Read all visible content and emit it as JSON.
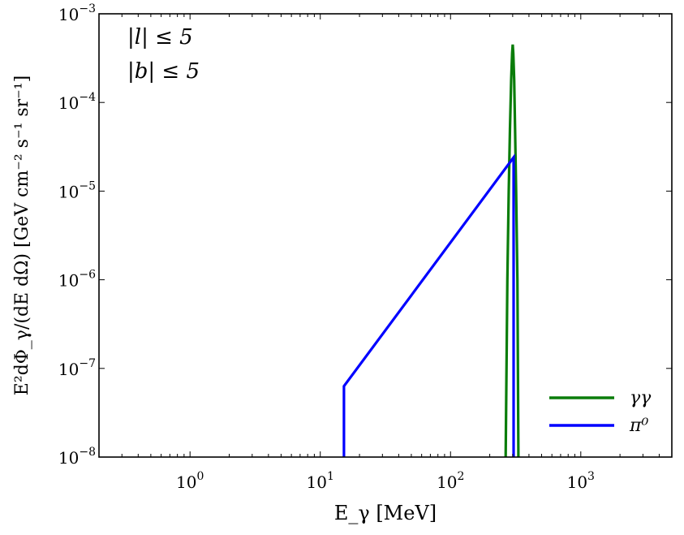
{
  "chart_data": {
    "type": "line",
    "xscale": "log",
    "yscale": "log",
    "xlim": [
      0.2,
      5000
    ],
    "ylim": [
      1e-08,
      0.001
    ],
    "xlabel": "E_γ [MeV]",
    "ylabel": "E²dΦ_γ/(dE dΩ) [GeV cm⁻² s⁻¹ sr⁻¹]",
    "x_ticks": [
      {
        "value": 1,
        "label": "10^0"
      },
      {
        "value": 10,
        "label": "10^1"
      },
      {
        "value": 100,
        "label": "10^2"
      },
      {
        "value": 1000,
        "label": "10^3"
      }
    ],
    "y_ticks": [
      {
        "value": 1e-08,
        "label": "10^−8"
      },
      {
        "value": 1e-07,
        "label": "10^−7"
      },
      {
        "value": 1e-06,
        "label": "10^−6"
      },
      {
        "value": 1e-05,
        "label": "10^−5"
      },
      {
        "value": 0.0001,
        "label": "10^−4"
      },
      {
        "value": 0.001,
        "label": "10^−3"
      }
    ],
    "annotations": [
      "|l| ≤ 5",
      "|b| ≤ 5"
    ],
    "legend_position": "lower-right",
    "grid": false,
    "series": [
      {
        "name": "γγ",
        "color": "#0a7d0a",
        "points": [
          [
            265,
            1e-08
          ],
          [
            273,
            1e-06
          ],
          [
            280,
            1e-05
          ],
          [
            286,
            5e-05
          ],
          [
            292,
            0.00018
          ],
          [
            297,
            0.00036
          ],
          [
            300,
            0.00045
          ],
          [
            303,
            0.00036
          ],
          [
            308,
            0.00018
          ],
          [
            313,
            5e-05
          ],
          [
            319,
            1e-05
          ],
          [
            326,
            1e-06
          ],
          [
            332,
            1e-08
          ]
        ]
      },
      {
        "name": "π⁰",
        "color": "#0000ff",
        "points": [
          [
            15.2,
            1e-08
          ],
          [
            15.2,
            6.3e-08
          ],
          [
            305,
            2.4e-05
          ],
          [
            305,
            1e-08
          ]
        ]
      }
    ]
  }
}
